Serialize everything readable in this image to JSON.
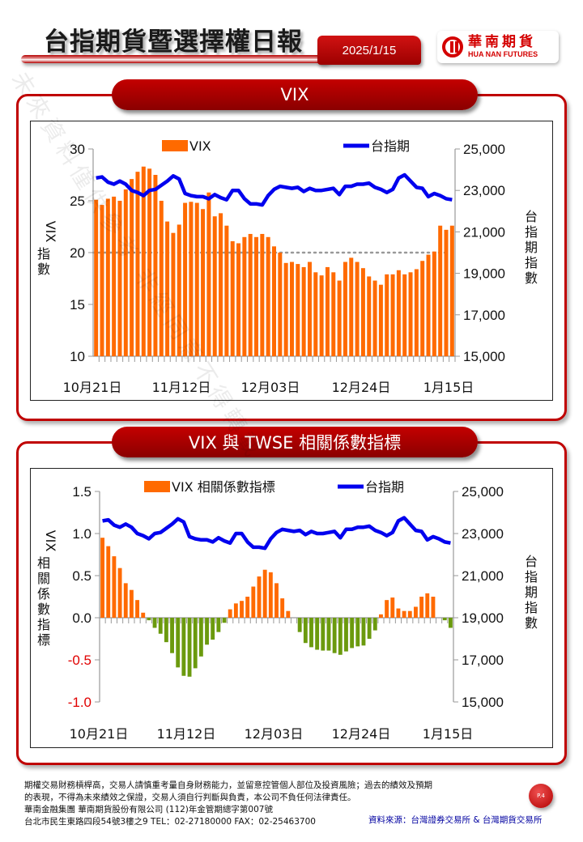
{
  "header": {
    "title": "台指期貨暨選擇權日報",
    "date": "2025/1/15",
    "logo_cn": "華南期貨",
    "logo_en": "HUA NAN FUTURES"
  },
  "sections": {
    "vix_title": "VIX",
    "corr_title": "VIX 與 TWSE 相關係數指標"
  },
  "watermark": "未來資料僅供參考 非經同意不得轉載",
  "colors": {
    "bar_orange": "#ff6a00",
    "bar_green": "#6b9a0e",
    "line_blue": "#0000ee",
    "brand_red": "#c00000"
  },
  "chart_data": [
    {
      "type": "bar+line",
      "title": "VIX",
      "legend": [
        "VIX",
        "台指期"
      ],
      "ylabel_left": "VIX指數",
      "ylabel_right": "台指期指數",
      "y_left_ticks": [
        "30",
        "25",
        "20",
        "15",
        "10"
      ],
      "y_right_ticks": [
        "25,000",
        "23,000",
        "21,000",
        "19,000",
        "17,000",
        "15,000"
      ],
      "ylim_left": [
        10,
        30
      ],
      "ylim_right": [
        15000,
        25000
      ],
      "x_tick_labels": [
        "10月21日",
        "11月12日",
        "12月03日",
        "12月24日",
        "1月15日"
      ],
      "reference_line": 20,
      "series": [
        {
          "name": "VIX",
          "type": "bar",
          "values": [
            25.1,
            24.6,
            25.2,
            25.4,
            25.0,
            26.1,
            27.1,
            27.8,
            28.3,
            28.1,
            27.5,
            25.0,
            23.0,
            21.9,
            22.7,
            24.8,
            24.9,
            24.8,
            24.2,
            25.8,
            23.5,
            23.8,
            22.6,
            21.1,
            20.9,
            21.5,
            21.8,
            21.5,
            21.8,
            21.5,
            20.6,
            20.0,
            19.0,
            19.1,
            18.9,
            18.6,
            19.1,
            18.1,
            17.8,
            18.6,
            18.1,
            17.3,
            19.1,
            19.5,
            19.1,
            18.5,
            17.7,
            17.3,
            16.9,
            17.9,
            17.9,
            18.3,
            17.9,
            18.1,
            18.4,
            19.2,
            19.8,
            20.1,
            22.6,
            22.2,
            22.6
          ]
        },
        {
          "name": "台指期",
          "type": "line",
          "values": [
            23600,
            23650,
            23400,
            23300,
            23450,
            23300,
            23000,
            22900,
            22750,
            23000,
            23050,
            23250,
            23450,
            23700,
            23550,
            22850,
            22750,
            22700,
            22700,
            22600,
            22800,
            22650,
            22550,
            23000,
            23000,
            22600,
            22350,
            22350,
            22300,
            22750,
            23050,
            23200,
            23150,
            23100,
            23150,
            22950,
            23100,
            23000,
            23000,
            23050,
            23100,
            22800,
            23200,
            23200,
            23300,
            23300,
            23350,
            23150,
            23050,
            22900,
            23050,
            23600,
            23750,
            23450,
            23150,
            23100,
            22700,
            22850,
            22750,
            22600,
            22550
          ]
        }
      ]
    },
    {
      "type": "bar+line",
      "title": "VIX 與 TWSE 相關係數指標",
      "legend": [
        "VIX 相關係數指標",
        "台指期"
      ],
      "ylabel_left": "VIX相關係數指標",
      "ylabel_right": "台指期指數",
      "y_left_ticks": [
        "1.5",
        "1.0",
        "0.5",
        "0.0",
        "-0.5",
        "-1.0"
      ],
      "y_right_ticks": [
        "25,000",
        "23,000",
        "21,000",
        "19,000",
        "17,000",
        "15,000"
      ],
      "ylim_left": [
        -1.0,
        1.5
      ],
      "ylim_right": [
        15000,
        25000
      ],
      "x_tick_labels": [
        "10月21日",
        "11月12日",
        "12月03日",
        "12月24日",
        "1月15日"
      ],
      "series": [
        {
          "name": "VIX 相關係數指標",
          "type": "bar",
          "values": [
            0.95,
            0.85,
            0.73,
            0.59,
            0.41,
            0.33,
            0.21,
            0.06,
            -0.03,
            -0.12,
            -0.19,
            -0.29,
            -0.42,
            -0.59,
            -0.69,
            -0.7,
            -0.6,
            -0.46,
            -0.32,
            -0.26,
            -0.17,
            -0.06,
            0.1,
            0.17,
            0.2,
            0.25,
            0.37,
            0.49,
            0.57,
            0.54,
            0.41,
            0.23,
            0.08,
            0.0,
            -0.17,
            -0.3,
            -0.35,
            -0.38,
            -0.39,
            -0.39,
            -0.42,
            -0.44,
            -0.4,
            -0.36,
            -0.34,
            -0.33,
            -0.25,
            -0.15,
            0.04,
            0.21,
            0.24,
            0.11,
            0.08,
            0.08,
            0.13,
            0.25,
            0.29,
            0.25,
            0.0,
            -0.03,
            -0.12
          ]
        },
        {
          "name": "台指期",
          "type": "line",
          "values": [
            23600,
            23650,
            23400,
            23300,
            23450,
            23300,
            23000,
            22900,
            22750,
            23000,
            23050,
            23250,
            23450,
            23700,
            23550,
            22850,
            22750,
            22700,
            22700,
            22600,
            22800,
            22650,
            22550,
            23000,
            23000,
            22600,
            22350,
            22350,
            22300,
            22750,
            23050,
            23200,
            23150,
            23100,
            23150,
            22950,
            23100,
            23000,
            23000,
            23050,
            23100,
            22800,
            23200,
            23200,
            23300,
            23300,
            23350,
            23150,
            23050,
            22900,
            23050,
            23600,
            23750,
            23450,
            23150,
            23100,
            22700,
            22850,
            22750,
            22600,
            22550
          ]
        }
      ]
    }
  ],
  "footer": {
    "disclaimer_1": "期權交易財務槓桿高，交易人請慎重考量自身財務能力，並留意控管個人部位及投資風險；過去的績效及預期",
    "disclaimer_2": "的表現，不得為未來績效之保證，交易人須自行判斷與負責，本公司不負任何法律責任。",
    "company": "華南金融集團 華南期貨股份有限公司 (112)年金管期總字第007號",
    "address": "台北市民生東路四段54號3樓之9  TEL：02-27180000  FAX：02-25463700",
    "source": "資料來源：台灣證券交易所 & 台灣期貨交易所",
    "page": "P.4"
  }
}
